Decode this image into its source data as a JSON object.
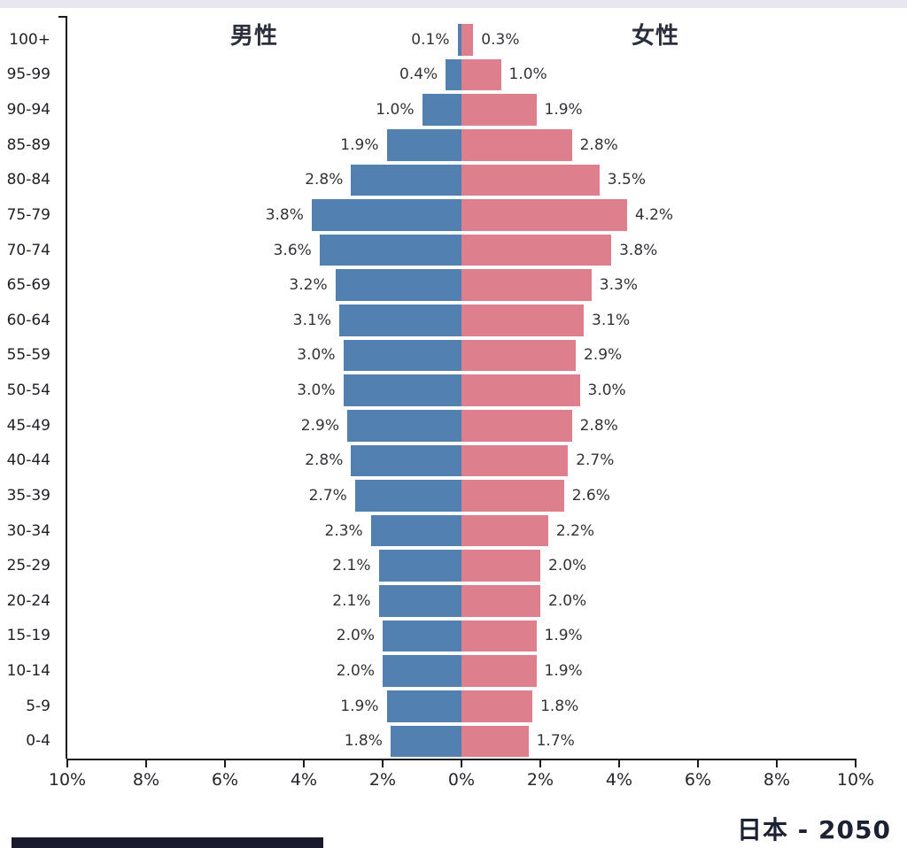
{
  "top_strip_color": "#e8e6ef",
  "bottom_bar_color": "#191a2b",
  "chart_data": {
    "type": "bar",
    "subtype": "population-pyramid",
    "title": "日本 - 2050",
    "left_header": "男性",
    "right_header": "女性",
    "age_groups": [
      "100+",
      "95-99",
      "90-94",
      "85-89",
      "80-84",
      "75-79",
      "70-74",
      "65-69",
      "60-64",
      "55-59",
      "50-54",
      "45-49",
      "40-44",
      "35-39",
      "30-34",
      "25-29",
      "20-24",
      "15-19",
      "10-14",
      "5-9",
      "0-4"
    ],
    "series": [
      {
        "name": "男性",
        "side": "left",
        "color": "#5281b1",
        "values": [
          0.1,
          0.4,
          1.0,
          1.9,
          2.8,
          3.8,
          3.6,
          3.2,
          3.1,
          3.0,
          3.0,
          2.9,
          2.8,
          2.7,
          2.3,
          2.1,
          2.1,
          2.0,
          2.0,
          1.9,
          1.8
        ],
        "labels": [
          "0.1%",
          "0.4%",
          "1.0%",
          "1.9%",
          "2.8%",
          "3.8%",
          "3.6%",
          "3.2%",
          "3.1%",
          "3.0%",
          "3.0%",
          "2.9%",
          "2.8%",
          "2.7%",
          "2.3%",
          "2.1%",
          "2.1%",
          "2.0%",
          "2.0%",
          "1.9%",
          "1.8%"
        ]
      },
      {
        "name": "女性",
        "side": "right",
        "color": "#dd7f8c",
        "values": [
          0.3,
          1.0,
          1.9,
          2.8,
          3.5,
          4.2,
          3.8,
          3.3,
          3.1,
          2.9,
          3.0,
          2.8,
          2.7,
          2.6,
          2.2,
          2.0,
          2.0,
          1.9,
          1.9,
          1.8,
          1.7
        ],
        "labels": [
          "0.3%",
          "1.0%",
          "1.9%",
          "2.8%",
          "3.5%",
          "4.2%",
          "3.8%",
          "3.3%",
          "3.1%",
          "2.9%",
          "3.0%",
          "2.8%",
          "2.7%",
          "2.6%",
          "2.2%",
          "2.0%",
          "2.0%",
          "1.9%",
          "1.9%",
          "1.8%",
          "1.7%"
        ]
      }
    ],
    "x_ticks": [
      "10%",
      "8%",
      "6%",
      "4%",
      "2%",
      "0%",
      "2%",
      "4%",
      "6%",
      "8%",
      "10%"
    ],
    "xlim_each_side": [
      0,
      10
    ],
    "grid": false,
    "legend_position": "none",
    "axis_color": "#1a1a1f"
  }
}
